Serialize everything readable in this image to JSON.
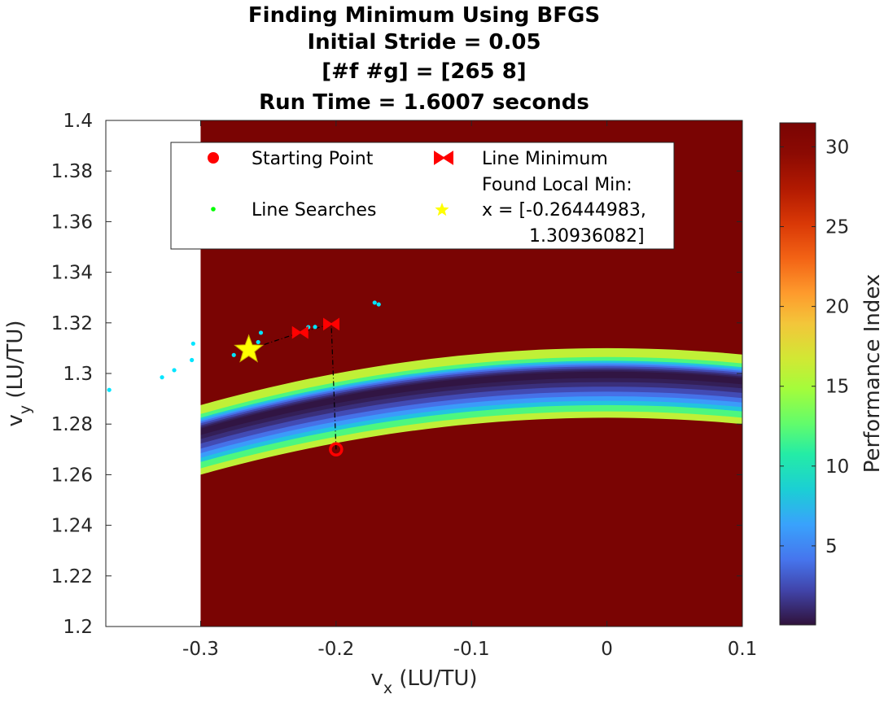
{
  "chart_data": {
    "type": "contour",
    "title_lines": [
      "Finding Minimum Using BFGS",
      "Initial Stride = 0.05",
      "[#f #g] = [265 8]",
      "Run Time = 1.6007 seconds"
    ],
    "xlabel": {
      "main": "v",
      "sub": "x",
      "unit": " (LU/TU)"
    },
    "ylabel": {
      "main": "v",
      "sub": "y",
      "unit": " (LU/TU)"
    },
    "xlim": [
      -0.37,
      0.1
    ],
    "ylim": [
      1.2,
      1.4
    ],
    "xticks": [
      -0.3,
      -0.2,
      -0.1,
      0,
      0.1
    ],
    "xtick_labels": [
      "-0.3",
      "-0.2",
      "-0.1",
      "0",
      "0.1"
    ],
    "yticks": [
      1.2,
      1.22,
      1.24,
      1.26,
      1.28,
      1.3,
      1.32,
      1.34,
      1.36,
      1.38,
      1.4
    ],
    "ytick_labels": [
      "1.2",
      "1.22",
      "1.24",
      "1.26",
      "1.28",
      "1.3",
      "1.32",
      "1.34",
      "1.36",
      "1.38",
      "1.4"
    ],
    "colorbar": {
      "label": "Performance Index",
      "range": [
        0.05,
        31.5
      ],
      "ticks": [
        5,
        10,
        15,
        20,
        25,
        30
      ],
      "tick_labels": [
        "5",
        "10",
        "15",
        "20",
        "25",
        "30"
      ]
    },
    "field": {
      "x_range": [
        -0.3,
        0.1
      ],
      "y_range": [
        1.2,
        1.4
      ],
      "valley_center": [
        0.0,
        1.3
      ],
      "curvature": 2.5,
      "saturation_value": 31.5,
      "background_color": "#7a0403"
    },
    "legend": {
      "position": "top-inside",
      "entries": [
        {
          "label": "Starting Point",
          "marker": "circle",
          "color": "#ff0000"
        },
        {
          "label": "Line Minimum",
          "marker": "bowtie",
          "color": "#ff0000"
        },
        {
          "label": "Line Searches",
          "marker": "dot",
          "color": "#00ff00"
        },
        {
          "label": "Found Local Min:",
          "label2": "x = [-0.26444983,",
          "label3": "1.30936082]",
          "marker": "star",
          "color": "#ffff00"
        }
      ]
    },
    "starting_point": {
      "x": -0.2,
      "y": 1.27
    },
    "line_minima": [
      {
        "x": -0.2035,
        "y": 1.3195
      },
      {
        "x": -0.2265,
        "y": 1.3162
      }
    ],
    "path": [
      {
        "x": -0.2,
        "y": 1.27
      },
      {
        "x": -0.2035,
        "y": 1.3195
      },
      {
        "x": -0.2265,
        "y": 1.3162
      },
      {
        "x": -0.2644,
        "y": 1.3094
      }
    ],
    "found_min": {
      "x": -0.26444983,
      "y": 1.30936082
    },
    "line_search_points": [
      {
        "x": -0.1715,
        "y": 1.328
      },
      {
        "x": -0.1685,
        "y": 1.3273
      },
      {
        "x": -0.2155,
        "y": 1.3184
      },
      {
        "x": -0.2205,
        "y": 1.3183
      },
      {
        "x": -0.2555,
        "y": 1.3161
      },
      {
        "x": -0.2575,
        "y": 1.3124
      },
      {
        "x": -0.2755,
        "y": 1.3073
      },
      {
        "x": -0.3055,
        "y": 1.3118
      },
      {
        "x": -0.3065,
        "y": 1.3053
      },
      {
        "x": -0.3195,
        "y": 1.3013
      },
      {
        "x": -0.3285,
        "y": 1.2985
      },
      {
        "x": -0.3675,
        "y": 1.2935
      }
    ],
    "colors": {
      "path": "#000000",
      "start": "#ff0000",
      "line_min": "#ff0000",
      "search": "#00e5ff",
      "star": "#ffff00",
      "star_edge": "#c8a800"
    }
  }
}
